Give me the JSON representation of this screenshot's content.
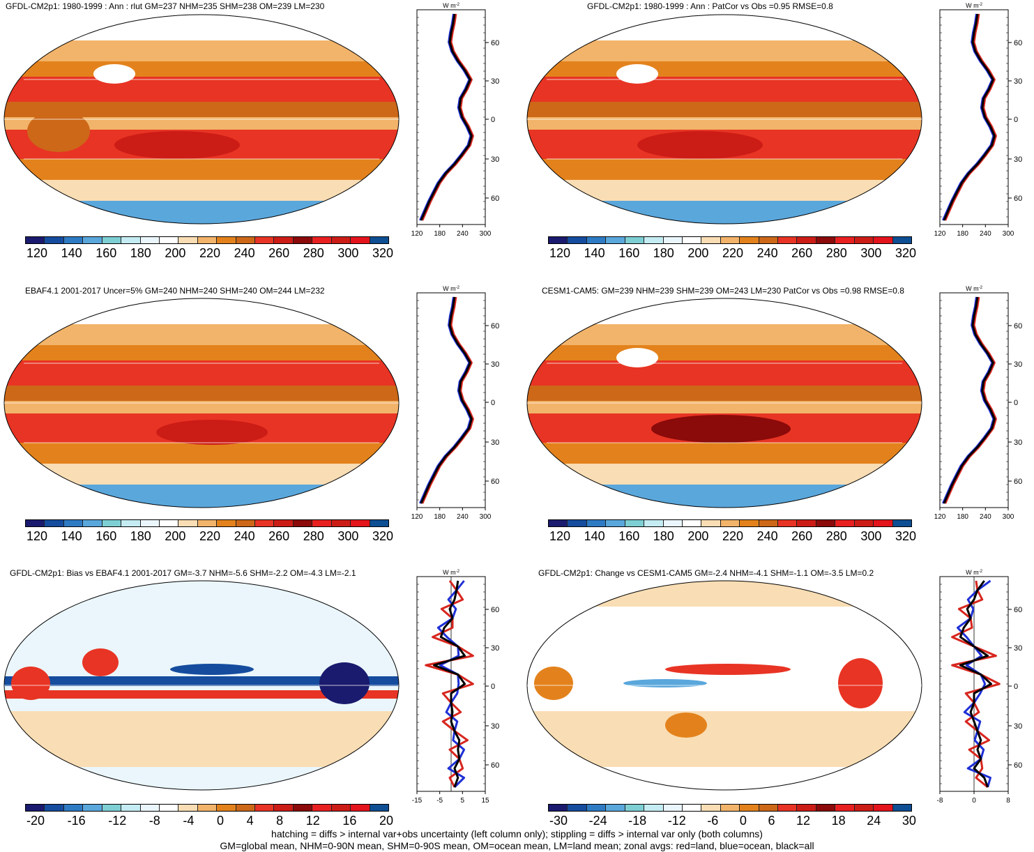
{
  "panels": [
    {
      "title": "GFDL-CM2p1: 1980-1999 : Ann : rlut GM=237 NHM=235 SHM=238 OM=239 LM=230",
      "colorbar_labels": [
        "120",
        "140",
        "160",
        "180",
        "200",
        "220",
        "240",
        "260",
        "280",
        "300",
        "320"
      ],
      "zonal_ticks": [
        "120",
        "180",
        "240",
        "300"
      ],
      "lat_labels": [
        "60N",
        "30N",
        "0",
        "30S",
        "60S"
      ],
      "unit": "W m",
      "unit_sup": "-2"
    },
    {
      "title": "GFDL-CM2p1: 1980-1999 : Ann : PatCor vs Obs =0.95 RMSE=0.8",
      "colorbar_labels": [
        "120",
        "140",
        "160",
        "180",
        "200",
        "220",
        "240",
        "260",
        "280",
        "300",
        "320"
      ],
      "zonal_ticks": [
        "120",
        "180",
        "240",
        "300"
      ],
      "lat_labels": [
        "60N",
        "30N",
        "0",
        "30S",
        "60S"
      ],
      "unit": "W m",
      "unit_sup": "-2"
    },
    {
      "title": "EBAF4.1 2001-2017 Uncer=5% GM=240 NHM=240 SHM=240 OM=244 LM=232",
      "colorbar_labels": [
        "120",
        "140",
        "160",
        "180",
        "200",
        "220",
        "240",
        "260",
        "280",
        "300",
        "320"
      ],
      "zonal_ticks": [
        "120",
        "180",
        "240",
        "300"
      ],
      "lat_labels": [
        "60N",
        "30N",
        "0",
        "30S",
        "60S"
      ],
      "unit": "W m",
      "unit_sup": "-2"
    },
    {
      "title": "CESM1-CAM5: GM=239 NHM=239 SHM=239 OM=243 LM=230 PatCor vs Obs =0.98 RMSE=0.8",
      "colorbar_labels": [
        "120",
        "140",
        "160",
        "180",
        "200",
        "220",
        "240",
        "260",
        "280",
        "300",
        "320"
      ],
      "zonal_ticks": [
        "120",
        "180",
        "240",
        "300"
      ],
      "lat_labels": [
        "60N",
        "30N",
        "0",
        "30S",
        "60S"
      ],
      "unit": "W m",
      "unit_sup": "-2"
    },
    {
      "title": "GFDL-CM2p1: Bias vs EBAF4.1 2001-2017 GM=-3.7 NHM=-5.6 SHM=-2.2 OM=-4.3 LM=-2.1",
      "colorbar_labels": [
        "-20",
        "-16",
        "-12",
        "-8",
        "-4",
        "0",
        "4",
        "8",
        "12",
        "16",
        "20"
      ],
      "zonal_ticks": [
        "-15",
        "-5",
        "5",
        "15"
      ],
      "lat_labels": [
        "60N",
        "30N",
        "0",
        "30S",
        "60S"
      ],
      "unit": "W m",
      "unit_sup": "-2"
    },
    {
      "title": "GFDL-CM2p1: Change vs CESM1-CAM5 GM=-2.4 NHM=-4.1 SHM=-1.1 OM=-3.5 LM=0.2",
      "colorbar_labels": [
        "-30",
        "-24",
        "-18",
        "-12",
        "-6",
        "0",
        "6",
        "12",
        "18",
        "24",
        "30"
      ],
      "zonal_ticks": [
        "-8",
        "0",
        "8"
      ],
      "lat_labels": [
        "60N",
        "30N",
        "0",
        "30S",
        "60S"
      ],
      "unit": "W m",
      "unit_sup": "-2"
    }
  ],
  "colors": {
    "palette": [
      "#1a1a6e",
      "#154c9e",
      "#2e7bc4",
      "#5aa7dc",
      "#7ecfd3",
      "#c4ecf2",
      "#eaf6fb",
      "#ffffff",
      "#f9ddb4",
      "#f2b46a",
      "#e3821c",
      "#cc6818",
      "#e83424",
      "#cc1c16",
      "#8b0a0a",
      "#e82020",
      "#cc1c16",
      "#e3141c",
      "#0e4e92"
    ],
    "land_line": "#d7261e",
    "ocean_line": "#1e2fd6",
    "all_line": "#000000"
  },
  "footer": {
    "line1": "hatching = diffs > internal var+obs uncertainty (left column only); stippling = diffs > internal var only (both columns)",
    "line2": "GM=global mean, NHM=0-90N mean, SHM=0-90S mean, OM=ocean mean, LM=land mean; zonal avgs: red=land, blue=ocean, black=all"
  },
  "chart_data": [
    {
      "type": "heatmap",
      "title": "GFDL-CM2p1: 1980-1999 : Ann : rlut GM=237 NHM=235 SHM=238 OM=239 LM=230",
      "colorbar": [
        120,
        140,
        160,
        180,
        200,
        220,
        240,
        260,
        280,
        300,
        320
      ],
      "zonal_xlim": [
        120,
        300
      ],
      "zonal_series": [
        {
          "name": "land",
          "color": "red"
        },
        {
          "name": "ocean",
          "color": "blue"
        },
        {
          "name": "all",
          "color": "black"
        }
      ]
    },
    {
      "type": "heatmap",
      "title": "GFDL-CM2p1: 1980-1999 : Ann : PatCor vs Obs =0.95 RMSE=0.8",
      "colorbar": [
        120,
        140,
        160,
        180,
        200,
        220,
        240,
        260,
        280,
        300,
        320
      ],
      "zonal_xlim": [
        120,
        300
      ]
    },
    {
      "type": "heatmap",
      "title": "EBAF4.1 2001-2017 Uncer=5% GM=240 NHM=240 SHM=240 OM=244 LM=232",
      "colorbar": [
        120,
        140,
        160,
        180,
        200,
        220,
        240,
        260,
        280,
        300,
        320
      ],
      "zonal_xlim": [
        120,
        300
      ]
    },
    {
      "type": "heatmap",
      "title": "CESM1-CAM5: GM=239 NHM=239 SHM=239 OM=243 LM=230 PatCor vs Obs =0.98 RMSE=0.8",
      "colorbar": [
        120,
        140,
        160,
        180,
        200,
        220,
        240,
        260,
        280,
        300,
        320
      ],
      "zonal_xlim": [
        120,
        300
      ]
    },
    {
      "type": "heatmap",
      "title": "GFDL-CM2p1: Bias vs EBAF4.1 2001-2017 GM=-3.7 NHM=-5.6 SHM=-2.2 OM=-4.3 LM=-2.1",
      "colorbar": [
        -20,
        -16,
        -12,
        -8,
        -4,
        0,
        4,
        8,
        12,
        16,
        20
      ],
      "zonal_xlim": [
        -15,
        15
      ]
    },
    {
      "type": "heatmap",
      "title": "GFDL-CM2p1: Change vs CESM1-CAM5 GM=-2.4 NHM=-4.1 SHM=-1.1 OM=-3.5 LM=0.2",
      "colorbar": [
        -30,
        -24,
        -18,
        -12,
        -6,
        0,
        6,
        12,
        18,
        24,
        30
      ],
      "zonal_xlim": [
        -8,
        8
      ]
    }
  ]
}
